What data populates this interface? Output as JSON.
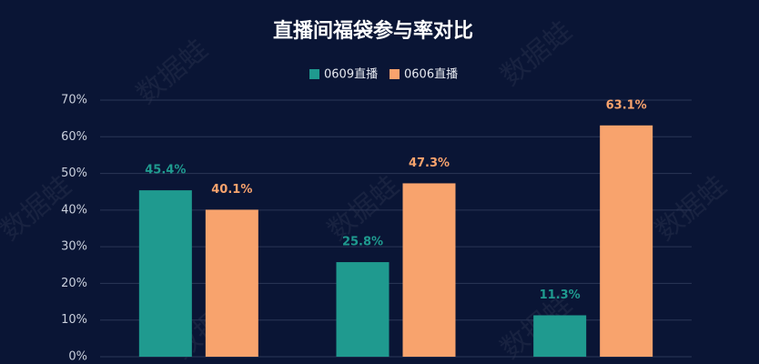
{
  "chart_data": {
    "type": "bar",
    "title": "直播间福袋参与率对比",
    "watermark": "数据蛙",
    "categories": [
      null,
      null,
      null
    ],
    "series": [
      {
        "name": "0609直播",
        "color": "#1f9a8f",
        "values": [
          45.4,
          25.8,
          11.3
        ],
        "value_labels": [
          "45.4%",
          "25.8%",
          "11.3%"
        ]
      },
      {
        "name": "0606直播",
        "color": "#f8a36d",
        "values": [
          40.1,
          47.3,
          63.1
        ],
        "value_labels": [
          "40.1%",
          "47.3%",
          "63.1%"
        ]
      }
    ],
    "ylim": [
      0,
      70
    ],
    "yticks": [
      {
        "value": 0,
        "label": "0%"
      },
      {
        "value": 10,
        "label": "10%"
      },
      {
        "value": 20,
        "label": "20%"
      },
      {
        "value": 30,
        "label": "30%"
      },
      {
        "value": 40,
        "label": "40%"
      },
      {
        "value": 50,
        "label": "50%"
      },
      {
        "value": 60,
        "label": "60%"
      },
      {
        "value": 70,
        "label": "70%"
      }
    ],
    "grid": true,
    "legend": "top"
  }
}
